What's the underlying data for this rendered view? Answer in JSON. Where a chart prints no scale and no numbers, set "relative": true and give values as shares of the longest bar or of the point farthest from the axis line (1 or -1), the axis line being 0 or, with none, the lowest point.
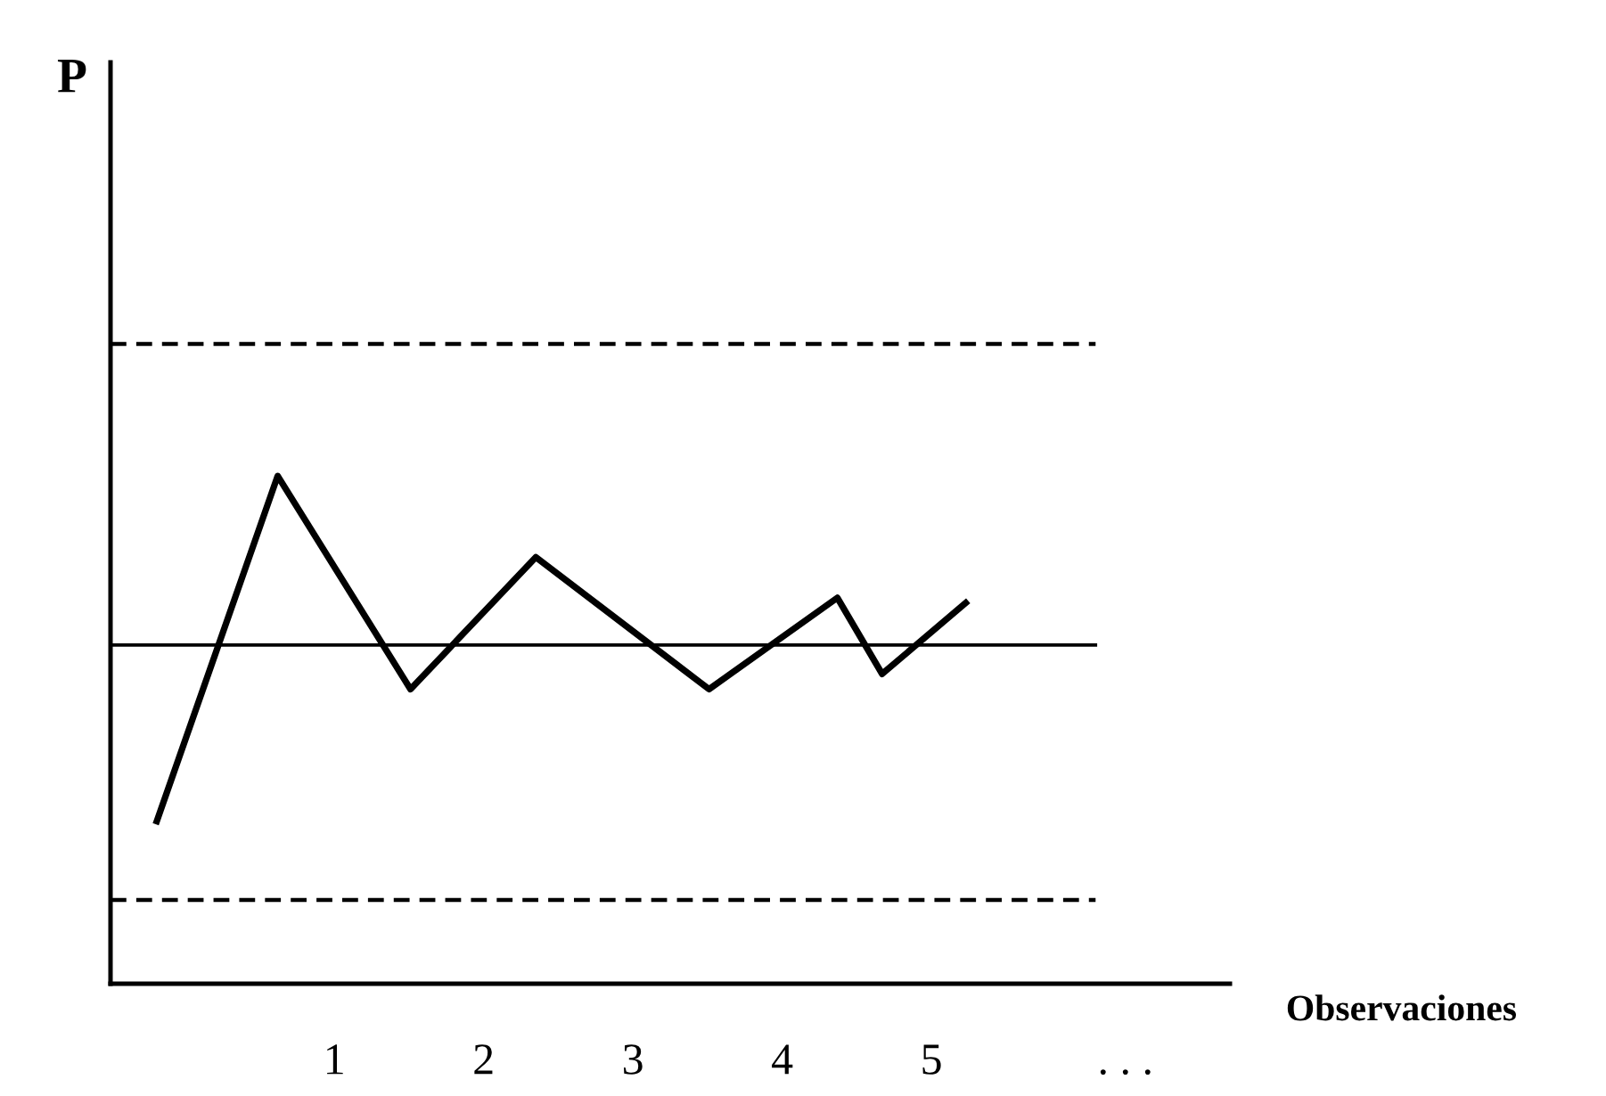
{
  "chart_data": {
    "type": "line",
    "relative": true,
    "xlabel": "Observaciones",
    "annotations": [
      "P"
    ],
    "xlim": [
      -0.5,
      7
    ],
    "xticks": [
      1,
      2,
      3,
      4,
      5,
      {
        "value": 6.3,
        "label": ". . ."
      }
    ],
    "tick_labels": "x",
    "grid": false,
    "legend": false,
    "marker": "none",
    "line_style": "solid",
    "series": [
      {
        "color": "#000000",
        "x": [
          -0.19,
          0.62,
          1.51,
          2.35,
          3.51,
          4.37,
          4.67,
          5.23
        ],
        "values": [
          0.32,
          1,
          0.58,
          0.84,
          0.58,
          0.76,
          0.61,
          0.75
        ]
      }
    ],
    "ref_lines": [
      {
        "axis": "y",
        "value": 1.26,
        "color": "#000000",
        "line_style": "dashed"
      },
      {
        "axis": "y",
        "value": 0.667,
        "color": "#000000",
        "line_style": "solid"
      },
      {
        "axis": "y",
        "value": 0.165,
        "color": "#000000",
        "line_style": "dashed"
      }
    ]
  }
}
